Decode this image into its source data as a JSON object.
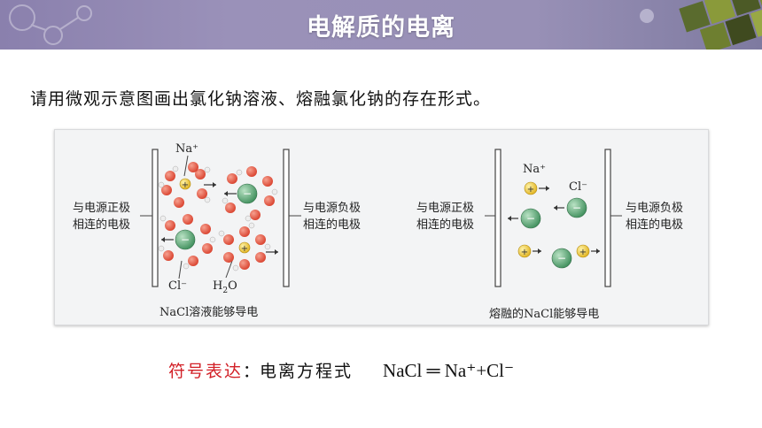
{
  "header": {
    "title": "电解质的电离"
  },
  "question": "请用微观示意图画出氯化钠溶液、熔融氯化钠的存在形式。",
  "figure": {
    "left": {
      "label_positive_line1": "与电源正极",
      "label_positive_line2": "相连的电极",
      "label_negative_line1": "与电源负极",
      "label_negative_line2": "相连的电极",
      "na_label": "Na⁺",
      "cl_label": "Cl⁻",
      "water_label_main": "H",
      "water_label_sub": "2",
      "water_label_end": "O",
      "caption": "NaCl溶液能够导电"
    },
    "right": {
      "label_positive_line1": "与电源正极",
      "label_positive_line2": "相连的电极",
      "label_negative_line1": "与电源负极",
      "label_negative_line2": "相连的电极",
      "na_label": "Na⁺",
      "cl_label": "Cl⁻",
      "caption": "熔融的NaCl能够导电"
    }
  },
  "formula": {
    "prefix": "符号表达",
    "colon": "：",
    "label": "电离方程式",
    "equation": "NaCl ═ Na⁺+Cl⁻"
  },
  "colors": {
    "banner": "#948bb4",
    "accent_red": "#d21f26",
    "na_ion": "#e9c22c",
    "cl_ion": "#5aa877",
    "oxygen": "#e0533f"
  }
}
